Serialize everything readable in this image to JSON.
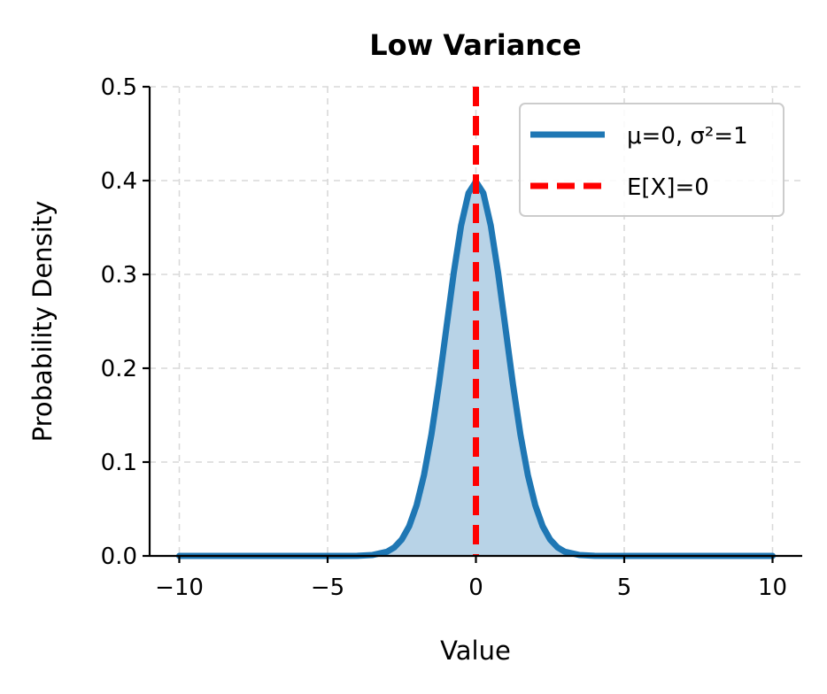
{
  "chart_data": {
    "type": "line",
    "title": "Low Variance",
    "xlabel": "Value",
    "ylabel": "Probability Density",
    "xlim": [
      -11,
      11
    ],
    "ylim": [
      0,
      0.5
    ],
    "xticks": [
      -10,
      -5,
      0,
      5,
      10
    ],
    "xtick_labels": [
      "−10",
      "−5",
      "0",
      "5",
      "10"
    ],
    "yticks": [
      0.0,
      0.1,
      0.2,
      0.3,
      0.4,
      0.5
    ],
    "ytick_labels": [
      "0.0",
      "0.1",
      "0.2",
      "0.3",
      "0.4",
      "0.5"
    ],
    "grid": true,
    "legend_position": "top-right",
    "series": [
      {
        "name": "μ=0, σ²=1",
        "kind": "line",
        "fill_under": true,
        "color": "#1f77b4",
        "fill_color": "#b8d3e7",
        "x": [
          -10,
          -9,
          -8,
          -7,
          -6,
          -5,
          -4,
          -3.5,
          -3,
          -2.75,
          -2.5,
          -2.25,
          -2,
          -1.75,
          -1.5,
          -1.25,
          -1,
          -0.75,
          -0.5,
          -0.25,
          0,
          0.25,
          0.5,
          0.75,
          1,
          1.25,
          1.5,
          1.75,
          2,
          2.25,
          2.5,
          2.75,
          3,
          3.5,
          4,
          5,
          6,
          7,
          8,
          9,
          10
        ],
        "y": [
          0.0,
          0.0,
          0.0,
          0.0,
          0.0,
          0.0,
          0.0001,
          0.0009,
          0.0044,
          0.0091,
          0.0175,
          0.0317,
          0.054,
          0.0863,
          0.1295,
          0.1826,
          0.242,
          0.3011,
          0.3521,
          0.3867,
          0.3989,
          0.3867,
          0.3521,
          0.3011,
          0.242,
          0.1826,
          0.1295,
          0.0863,
          0.054,
          0.0317,
          0.0175,
          0.0091,
          0.0044,
          0.0009,
          0.0001,
          0.0,
          0.0,
          0.0,
          0.0,
          0.0,
          0.0
        ]
      },
      {
        "name": "E[X]=0",
        "kind": "vline",
        "x_value": 0,
        "color": "#ff0000",
        "dashed": true
      }
    ]
  }
}
